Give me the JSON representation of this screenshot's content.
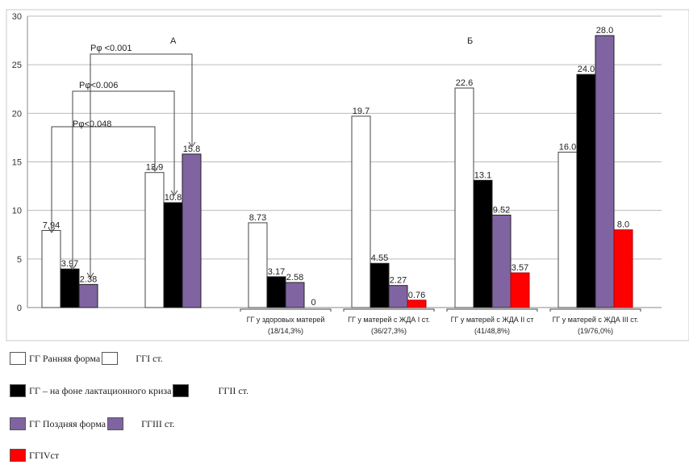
{
  "chart_data": {
    "type": "bar",
    "ylim": [
      0,
      30
    ],
    "yticks": [
      "0",
      "5",
      "10",
      "15",
      "20",
      "25",
      "30"
    ],
    "grid": true,
    "panel_labels": [
      "А",
      "Б"
    ],
    "groups": [
      {
        "bars": [
          {
            "value": 7.94,
            "label": "7.94",
            "color": "#ffffff"
          },
          {
            "value": 3.97,
            "label": "3.97",
            "color": "#000000"
          },
          {
            "value": 2.38,
            "label": "2.38",
            "color": "#8064a2"
          }
        ]
      },
      {
        "bars": [
          {
            "value": 13.9,
            "label": "13.9",
            "color": "#ffffff"
          },
          {
            "value": 10.8,
            "label": "10.8",
            "color": "#000000"
          },
          {
            "value": 15.8,
            "label": "15.8",
            "color": "#8064a2"
          }
        ]
      },
      {
        "label1": "ГГ у здоровых матерей",
        "label2": "(18/14,3%)",
        "bars": [
          {
            "value": 8.73,
            "label": "8.73",
            "color": "#ffffff"
          },
          {
            "value": 3.17,
            "label": "3.17",
            "color": "#000000"
          },
          {
            "value": 2.58,
            "label": "2.58",
            "color": "#8064a2"
          },
          {
            "value": 0,
            "label": "0",
            "color": "#ff0000"
          }
        ]
      },
      {
        "label1": "ГГ у матерей с ЖДА I ст.",
        "label2": "(36/27,3%)",
        "bars": [
          {
            "value": 19.7,
            "label": "19.7",
            "color": "#ffffff"
          },
          {
            "value": 4.55,
            "label": "4.55",
            "color": "#000000"
          },
          {
            "value": 2.27,
            "label": "2.27",
            "color": "#8064a2"
          },
          {
            "value": 0.76,
            "label": "0.76",
            "color": "#ff0000"
          }
        ]
      },
      {
        "label1": "ГГ у матерей с ЖДА II ст",
        "label2": "(41/48,8%)",
        "bars": [
          {
            "value": 22.6,
            "label": "22.6",
            "color": "#ffffff"
          },
          {
            "value": 13.1,
            "label": "13.1",
            "color": "#000000"
          },
          {
            "value": 9.52,
            "label": "9.52",
            "color": "#8064a2"
          },
          {
            "value": 3.57,
            "label": "3.57",
            "color": "#ff0000"
          }
        ]
      },
      {
        "label1": "ГГ у матерей с ЖДА III ст.",
        "label2": "(19/76,0%)",
        "bars": [
          {
            "value": 16.0,
            "label": "16.0",
            "color": "#ffffff"
          },
          {
            "value": 24.0,
            "label": "24.0",
            "color": "#000000"
          },
          {
            "value": 28.0,
            "label": "28.0",
            "color": "#8064a2"
          },
          {
            "value": 8.0,
            "label": "8.0",
            "color": "#ff0000"
          }
        ]
      }
    ],
    "significance": [
      "Pφ <0.001",
      "Pφ<0.006",
      "Pφ<0.048"
    ]
  },
  "legend": {
    "row1": {
      "a": "ГГ Ранняя форма",
      "b": "ГГI  ст."
    },
    "row2": {
      "a": "ГГ – на фоне лактационного криза",
      "b": "ГГII  ст."
    },
    "row3": {
      "a": "ГГ Поздняя форма",
      "b": "ГГIII  ст."
    },
    "row4": {
      "a": "ГГIVст"
    }
  }
}
